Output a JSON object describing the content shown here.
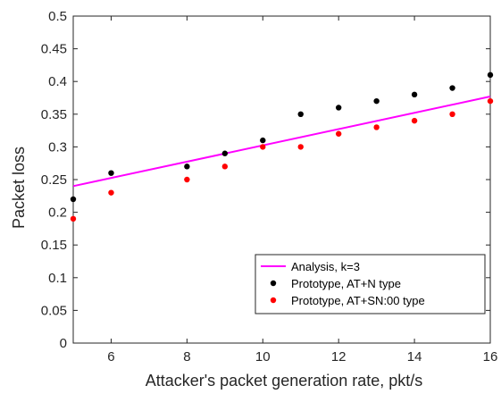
{
  "chart_data": {
    "type": "scatter",
    "xlabel": "Attacker's packet generation rate, pkt/s",
    "ylabel": "Packet loss",
    "xlim": [
      5,
      16
    ],
    "ylim": [
      0,
      0.5
    ],
    "x_ticks": [
      6,
      8,
      10,
      12,
      14,
      16
    ],
    "y_ticks": [
      0,
      0.05,
      0.1,
      0.15,
      0.2,
      0.25,
      0.3,
      0.35,
      0.4,
      0.45,
      0.5
    ],
    "x_tick_labels": [
      "6",
      "8",
      "10",
      "12",
      "14",
      "16"
    ],
    "y_tick_labels": [
      "0",
      "0.05",
      "0.1",
      "0.15",
      "0.2",
      "0.25",
      "0.3",
      "0.35",
      "0.4",
      "0.45",
      "0.5"
    ],
    "grid": false,
    "legend_position": "bottom-right",
    "series": [
      {
        "name": "Analysis, k=3",
        "kind": "line",
        "color": "#ff00ff",
        "x": [
          5,
          16
        ],
        "y": [
          0.24,
          0.377
        ]
      },
      {
        "name": "Prototype, AT+N type",
        "kind": "scatter",
        "color": "#000000",
        "x": [
          5,
          6,
          8,
          9,
          10,
          11,
          12,
          13,
          14,
          15,
          16
        ],
        "y": [
          0.22,
          0.26,
          0.27,
          0.29,
          0.31,
          0.35,
          0.36,
          0.37,
          0.38,
          0.39,
          0.41
        ]
      },
      {
        "name": "Prototype, AT+SN:00 type",
        "kind": "scatter",
        "color": "#ff0000",
        "x": [
          5,
          6,
          8,
          9,
          10,
          11,
          12,
          13,
          14,
          15,
          16
        ],
        "y": [
          0.19,
          0.23,
          0.25,
          0.27,
          0.3,
          0.3,
          0.32,
          0.33,
          0.34,
          0.35,
          0.37
        ]
      }
    ]
  }
}
